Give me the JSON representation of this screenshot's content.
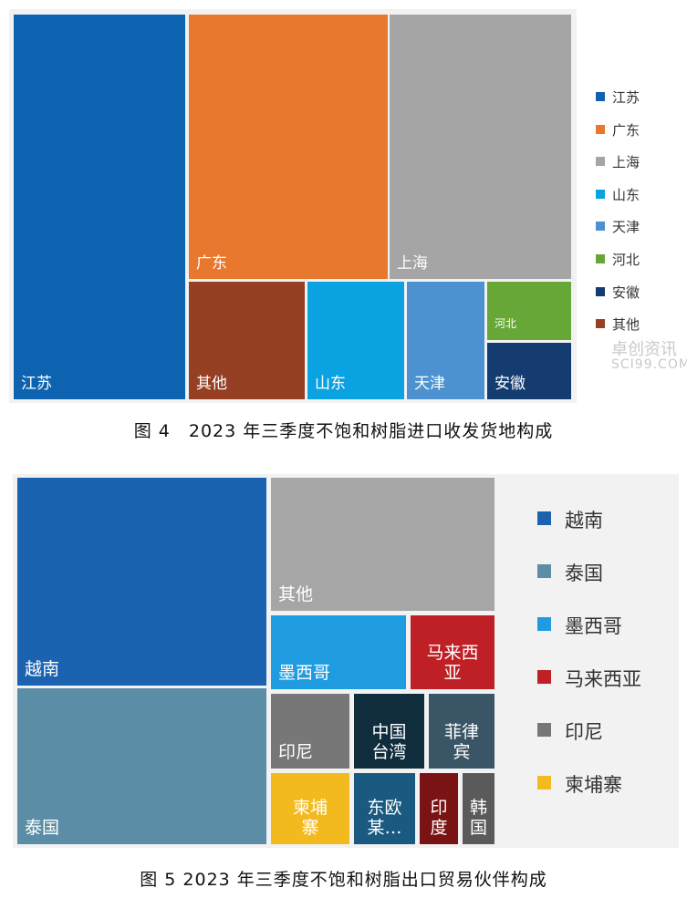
{
  "chart_data": [
    {
      "type": "treemap",
      "legend_position": "right",
      "items": [
        {
          "name": "江苏",
          "label": "江苏",
          "color": "#0e63b1"
        },
        {
          "name": "广东",
          "label": "广东",
          "color": "#e8782d"
        },
        {
          "name": "上海",
          "label": "上海",
          "color": "#a5a5a5"
        },
        {
          "name": "其他",
          "label": "其他",
          "color": "#973f22"
        },
        {
          "name": "山东",
          "label": "山东",
          "color": "#0aa2e1"
        },
        {
          "name": "天津",
          "label": "天津",
          "color": "#4c92d0"
        },
        {
          "name": "河北",
          "label": "河北",
          "color": "#67a737"
        },
        {
          "name": "安徽",
          "label": "安徽",
          "color": "#153c70"
        }
      ],
      "legend": [
        "江苏",
        "广东",
        "上海",
        "山东",
        "天津",
        "河北",
        "安徽",
        "其他"
      ]
    },
    {
      "type": "treemap",
      "legend_position": "right",
      "items": [
        {
          "name": "越南",
          "label": "越南",
          "color": "#1b63b0"
        },
        {
          "name": "泰国",
          "label": "泰国",
          "color": "#5b8ea6"
        },
        {
          "name": "其他",
          "label": "其他",
          "color": "#a6a6a6"
        },
        {
          "name": "墨西哥",
          "label": "墨西哥",
          "color": "#1f9ce0"
        },
        {
          "name": "马来西亚",
          "label": "马来西\n亚",
          "color": "#bf2025"
        },
        {
          "name": "印尼",
          "label": "印尼",
          "color": "#777777"
        },
        {
          "name": "中国台湾",
          "label": "中国\n台湾",
          "color": "#0f2d3d"
        },
        {
          "name": "菲律宾",
          "label": "菲律\n宾",
          "color": "#3a5565"
        },
        {
          "name": "柬埔寨",
          "label": "柬埔\n寨",
          "color": "#f3ba20"
        },
        {
          "name": "东欧某",
          "label": "东欧\n某…",
          "color": "#1a5a80"
        },
        {
          "name": "印度",
          "label": "印\n度",
          "color": "#7a1414"
        },
        {
          "name": "韩国",
          "label": "韩\n国",
          "color": "#5a5a5a"
        }
      ],
      "legend": [
        {
          "name": "越南",
          "color": "#1b63b0"
        },
        {
          "name": "泰国",
          "color": "#5b8ea6"
        },
        {
          "name": "墨西哥",
          "color": "#1f9ce0"
        },
        {
          "name": "马来西亚",
          "color": "#bf2025"
        },
        {
          "name": "印尼",
          "color": "#777777"
        },
        {
          "name": "柬埔寨",
          "color": "#f3ba20"
        }
      ]
    }
  ],
  "captions": {
    "fig4": "图 4　2023 年三季度不饱和树脂进口收发货地构成",
    "fig5": "图 5 2023 年三季度不饱和树脂出口贸易伙伴构成"
  },
  "watermark": {
    "line1": "卓创资讯",
    "line2": "SCI99.COM"
  }
}
